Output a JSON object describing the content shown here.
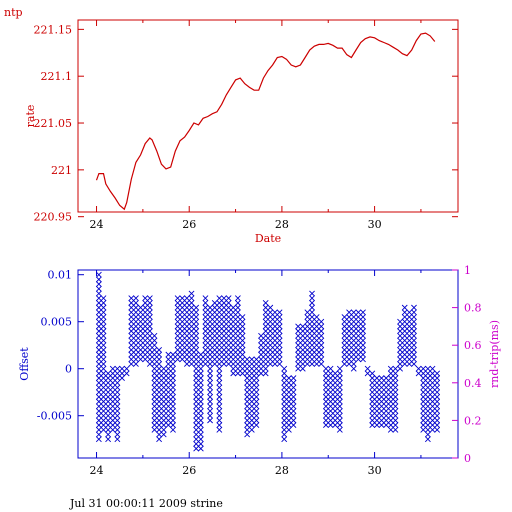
{
  "corner_label": "ntp",
  "footer": "Jul 31 00:00:11 2009 strine",
  "colors": {
    "top": "#cc0000",
    "bottom": "#0000cc",
    "right_axis": "#cc00cc"
  },
  "chart_data": [
    {
      "type": "line",
      "ylabel": "rate",
      "xlabel": "Date",
      "xlim": [
        23.6,
        31.8
      ],
      "ylim": [
        220.955,
        221.16
      ],
      "xticks": [
        24,
        26,
        28,
        30
      ],
      "yticks": [
        220.95,
        221,
        221.05,
        221.1,
        221.15
      ],
      "ytick_labels": [
        "220.95",
        "221",
        "221.05",
        "221.1",
        "221.15"
      ],
      "series": [
        {
          "x": [
            24.0,
            24.05,
            24.15,
            24.2,
            24.3,
            24.4,
            24.5,
            24.6,
            24.65,
            24.75,
            24.85,
            24.95,
            25.05,
            25.15,
            25.2,
            25.3,
            25.4,
            25.5,
            25.6,
            25.7,
            25.8,
            25.9,
            26.0,
            26.1,
            26.2,
            26.3,
            26.4,
            26.5,
            26.6,
            26.7,
            26.8,
            26.9,
            27.0,
            27.1,
            27.2,
            27.3,
            27.4,
            27.5,
            27.6,
            27.7,
            27.8,
            27.9,
            28.0,
            28.1,
            28.2,
            28.3,
            28.4,
            28.5,
            28.6,
            28.7,
            28.8,
            28.9,
            29.0,
            29.1,
            29.2,
            29.3,
            29.4,
            29.5,
            29.6,
            29.7,
            29.8,
            29.9,
            30.0,
            30.1,
            30.2,
            30.3,
            30.4,
            30.5,
            30.6,
            30.7,
            30.8,
            30.9,
            31.0,
            31.1,
            31.2,
            31.3
          ],
          "y": [
            220.989,
            220.996,
            220.996,
            220.985,
            220.977,
            220.97,
            220.962,
            220.958,
            220.965,
            220.99,
            221.008,
            221.016,
            221.028,
            221.034,
            221.032,
            221.02,
            221.006,
            221.001,
            221.003,
            221.02,
            221.031,
            221.035,
            221.042,
            221.05,
            221.048,
            221.055,
            221.057,
            221.06,
            221.062,
            221.07,
            221.08,
            221.088,
            221.096,
            221.098,
            221.092,
            221.088,
            221.085,
            221.085,
            221.098,
            221.106,
            221.112,
            221.12,
            221.121,
            221.118,
            221.112,
            221.11,
            221.112,
            221.12,
            221.128,
            221.132,
            221.134,
            221.134,
            221.135,
            221.133,
            221.13,
            221.13,
            221.123,
            221.12,
            221.128,
            221.136,
            221.14,
            221.142,
            221.141,
            221.138,
            221.136,
            221.134,
            221.131,
            221.128,
            221.124,
            221.122,
            221.128,
            221.138,
            221.145,
            221.146,
            221.143,
            221.137
          ]
        }
      ]
    },
    {
      "type": "scatter",
      "ylabel": "Offset",
      "y2label": "rnd-trip(ms)",
      "xlim": [
        23.6,
        31.8
      ],
      "ylim": [
        -0.0095,
        0.0105
      ],
      "y2lim": [
        0,
        1
      ],
      "xticks": [
        24,
        26,
        28,
        30
      ],
      "xtick_labels": [
        "24",
        "26",
        "28",
        "30"
      ],
      "yticks": [
        -0.005,
        0,
        0.005,
        0.01
      ],
      "ytick_labels": [
        "-0.005",
        "0",
        "0.005",
        "0.01"
      ],
      "y2ticks": [
        0,
        0.2,
        0.4,
        0.6,
        0.8,
        1
      ],
      "y2tick_labels": [
        "0",
        "0.2",
        "0.4",
        "0.6",
        "0.8",
        "1"
      ],
      "marker": "x",
      "columns": [
        {
          "x": 24.05,
          "ymin": -0.0075,
          "ymax": 0.01
        },
        {
          "x": 24.15,
          "ymin": -0.0065,
          "ymax": 0.0075
        },
        {
          "x": 24.25,
          "ymin": -0.0075,
          "ymax": -0.0005
        },
        {
          "x": 24.35,
          "ymin": -0.0065,
          "ymax": 0.0
        },
        {
          "x": 24.45,
          "ymin": -0.0075,
          "ymax": 0.0
        },
        {
          "x": 24.55,
          "ymin": -0.001,
          "ymax": 0.0
        },
        {
          "x": 24.65,
          "ymin": -0.0005,
          "ymax": 0.0
        },
        {
          "x": 24.75,
          "ymin": 0.0005,
          "ymax": 0.0075
        },
        {
          "x": 24.85,
          "ymin": 0.0005,
          "ymax": 0.0075
        },
        {
          "x": 24.95,
          "ymin": 0.001,
          "ymax": 0.0065
        },
        {
          "x": 25.05,
          "ymin": 0.001,
          "ymax": 0.0075
        },
        {
          "x": 25.15,
          "ymin": 0.0005,
          "ymax": 0.0075
        },
        {
          "x": 25.25,
          "ymin": -0.0065,
          "ymax": 0.0035
        },
        {
          "x": 25.35,
          "ymin": -0.0075,
          "ymax": 0.002
        },
        {
          "x": 25.45,
          "ymin": -0.007,
          "ymax": 0.0
        },
        {
          "x": 25.55,
          "ymin": -0.006,
          "ymax": 0.0015
        },
        {
          "x": 25.65,
          "ymin": -0.0065,
          "ymax": 0.0015
        },
        {
          "x": 25.75,
          "ymin": 0.001,
          "ymax": 0.0075
        },
        {
          "x": 25.85,
          "ymin": 0.001,
          "ymax": 0.0075
        },
        {
          "x": 25.95,
          "ymin": 0.0005,
          "ymax": 0.0075
        },
        {
          "x": 26.05,
          "ymin": 0.0005,
          "ymax": 0.008
        },
        {
          "x": 26.15,
          "ymin": -0.0085,
          "ymax": 0.0065
        },
        {
          "x": 26.25,
          "ymin": -0.0085,
          "ymax": 0.0015
        },
        {
          "x": 26.35,
          "ymin": 0.0005,
          "ymax": 0.0075
        },
        {
          "x": 26.45,
          "ymin": -0.0055,
          "ymax": 0.0065
        },
        {
          "x": 26.55,
          "ymin": 0.0005,
          "ymax": 0.007
        },
        {
          "x": 26.65,
          "ymin": -0.0065,
          "ymax": 0.0075
        },
        {
          "x": 26.75,
          "ymin": 0.0005,
          "ymax": 0.0075
        },
        {
          "x": 26.85,
          "ymin": 0.0005,
          "ymax": 0.0075
        },
        {
          "x": 26.95,
          "ymin": -0.0005,
          "ymax": 0.0065
        },
        {
          "x": 27.05,
          "ymin": -0.0005,
          "ymax": 0.0075
        },
        {
          "x": 27.15,
          "ymin": -0.0005,
          "ymax": 0.0055
        },
        {
          "x": 27.25,
          "ymin": -0.007,
          "ymax": 0.001
        },
        {
          "x": 27.35,
          "ymin": -0.0065,
          "ymax": 0.001
        },
        {
          "x": 27.45,
          "ymin": -0.006,
          "ymax": 0.001
        },
        {
          "x": 27.55,
          "ymin": -0.0005,
          "ymax": 0.0035
        },
        {
          "x": 27.65,
          "ymin": -0.0005,
          "ymax": 0.007
        },
        {
          "x": 27.75,
          "ymin": 0.0005,
          "ymax": 0.0065
        },
        {
          "x": 27.85,
          "ymin": 0.0005,
          "ymax": 0.006
        },
        {
          "x": 27.95,
          "ymin": 0.0005,
          "ymax": 0.006
        },
        {
          "x": 28.05,
          "ymin": -0.0075,
          "ymax": 0.0
        },
        {
          "x": 28.15,
          "ymin": -0.0065,
          "ymax": -0.001
        },
        {
          "x": 28.25,
          "ymin": -0.006,
          "ymax": -0.001
        },
        {
          "x": 28.35,
          "ymin": 0.0,
          "ymax": 0.0045
        },
        {
          "x": 28.45,
          "ymin": 0.0,
          "ymax": 0.0045
        },
        {
          "x": 28.55,
          "ymin": 0.0005,
          "ymax": 0.006
        },
        {
          "x": 28.65,
          "ymin": 0.0005,
          "ymax": 0.008
        },
        {
          "x": 28.75,
          "ymin": 0.0005,
          "ymax": 0.0055
        },
        {
          "x": 28.85,
          "ymin": 0.0005,
          "ymax": 0.005
        },
        {
          "x": 28.95,
          "ymin": -0.006,
          "ymax": 0.0
        },
        {
          "x": 29.05,
          "ymin": -0.006,
          "ymax": 0.0
        },
        {
          "x": 29.15,
          "ymin": -0.006,
          "ymax": -0.0005
        },
        {
          "x": 29.25,
          "ymin": -0.0065,
          "ymax": 0.0
        },
        {
          "x": 29.35,
          "ymin": 0.0005,
          "ymax": 0.0055
        },
        {
          "x": 29.45,
          "ymin": 0.0005,
          "ymax": 0.006
        },
        {
          "x": 29.55,
          "ymin": 0.0,
          "ymax": 0.006
        },
        {
          "x": 29.65,
          "ymin": 0.001,
          "ymax": 0.006
        },
        {
          "x": 29.75,
          "ymin": 0.001,
          "ymax": 0.006
        },
        {
          "x": 29.85,
          "ymin": -0.0005,
          "ymax": 0.0
        },
        {
          "x": 29.95,
          "ymin": -0.006,
          "ymax": -0.0005
        },
        {
          "x": 30.05,
          "ymin": -0.006,
          "ymax": -0.001
        },
        {
          "x": 30.15,
          "ymin": -0.006,
          "ymax": -0.001
        },
        {
          "x": 30.25,
          "ymin": -0.006,
          "ymax": -0.001
        },
        {
          "x": 30.35,
          "ymin": -0.0065,
          "ymax": 0.0
        },
        {
          "x": 30.45,
          "ymin": -0.0065,
          "ymax": 0.0
        },
        {
          "x": 30.55,
          "ymin": 0.0,
          "ymax": 0.005
        },
        {
          "x": 30.65,
          "ymin": 0.0005,
          "ymax": 0.0065
        },
        {
          "x": 30.75,
          "ymin": 0.0005,
          "ymax": 0.006
        },
        {
          "x": 30.85,
          "ymin": 0.0005,
          "ymax": 0.0065
        },
        {
          "x": 30.95,
          "ymin": -0.0005,
          "ymax": 0.0
        },
        {
          "x": 31.05,
          "ymin": -0.0065,
          "ymax": 0.0
        },
        {
          "x": 31.15,
          "ymin": -0.0075,
          "ymax": 0.0
        },
        {
          "x": 31.25,
          "ymin": -0.0065,
          "ymax": 0.0
        },
        {
          "x": 31.35,
          "ymin": -0.0065,
          "ymax": -0.0005
        }
      ]
    }
  ]
}
